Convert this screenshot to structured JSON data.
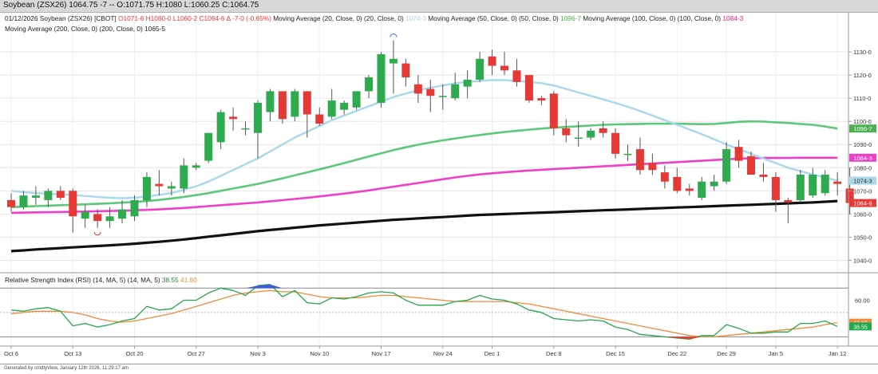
{
  "window_title": "Soybean (ZSX26) 1064.75 -7 -- O:1071.75 H:1080 L:1060.25 C:1064.75",
  "header": {
    "line1": [
      {
        "text": "01/12/2026 Soybean (ZSX26) [CBOT] ",
        "color": "#222222"
      },
      {
        "text": "O1071-6 H1080-0 L1060-2 C1064-6 Δ -7-0 (-0.65%)",
        "color": "#e53935"
      },
      {
        "text": " Moving Average (20, Close, 0) (20, Close, 0) ",
        "color": "#222222"
      },
      {
        "text": "1074-3",
        "color": "#a8d8ea"
      },
      {
        "text": " Moving Average (50, Close, 0) (50, Close, 0) ",
        "color": "#222222"
      },
      {
        "text": "1096-7",
        "color": "#4caf50"
      },
      {
        "text": " Moving Average (100, Close, 0) (100, Close, 0) ",
        "color": "#222222"
      },
      {
        "text": "1084-3",
        "color": "#e91e8c"
      }
    ],
    "line2": [
      {
        "text": "Moving Average (200, Close, 0) (200, Close, 0) ",
        "color": "#222222"
      },
      {
        "text": "1065-5",
        "color": "#222222"
      }
    ]
  },
  "rsi_header": [
    {
      "text": "Relative Strength Index (RSI) (14, MA, 5) (14, MA, 5) ",
      "color": "#222222"
    },
    {
      "text": "38.55",
      "color": "#2e7d32"
    },
    {
      "text": " 41.60",
      "color": "#ef8a3c"
    }
  ],
  "footer": "Generated by cmdtyView, January 12th 2026, 11:29:17 am",
  "colors": {
    "up": "#2eaa4f",
    "down": "#e53935",
    "ma20": "#a8d8ea",
    "ma50": "#5cc879",
    "ma100": "#ee3fc8",
    "ma200": "#111111",
    "rsi": "#22a84a",
    "rsi_ma": "#ef8a3c"
  },
  "chart_data": {
    "type": "candlestick",
    "price_axis": {
      "ticks": [
        "1130-0",
        "1120-0",
        "1110-0",
        "1100-0",
        "1090-0",
        "1080-0",
        "1070-0",
        "1060-0",
        "1050-0",
        "1040-0"
      ],
      "range": [
        1035,
        1140
      ]
    },
    "date_labels": [
      {
        "index": 0,
        "label": "Oct 6"
      },
      {
        "index": 5,
        "label": "Oct 13"
      },
      {
        "index": 10,
        "label": "Oct 20"
      },
      {
        "index": 15,
        "label": "Oct 27"
      },
      {
        "index": 20,
        "label": "Nov 3"
      },
      {
        "index": 25,
        "label": "Nov 10"
      },
      {
        "index": 30,
        "label": "Nov 17"
      },
      {
        "index": 35,
        "label": "Nov 24"
      },
      {
        "index": 39,
        "label": "Dec 1"
      },
      {
        "index": 44,
        "label": "Dec 8"
      },
      {
        "index": 49,
        "label": "Dec 15"
      },
      {
        "index": 54,
        "label": "Dec 22"
      },
      {
        "index": 58,
        "label": "Dec 29"
      },
      {
        "index": 62,
        "label": "Jan 5"
      },
      {
        "index": 67,
        "label": "Jan 12"
      }
    ],
    "ohlc": [
      [
        1066,
        1069,
        1061,
        1063
      ],
      [
        1063,
        1070,
        1062,
        1068
      ],
      [
        1067,
        1072,
        1064,
        1068
      ],
      [
        1066,
        1071,
        1063,
        1070
      ],
      [
        1070,
        1072,
        1066,
        1067
      ],
      [
        1070,
        1071,
        1052,
        1059
      ],
      [
        1058,
        1064,
        1054,
        1061
      ],
      [
        1060,
        1062,
        1054,
        1057
      ],
      [
        1057,
        1063,
        1054,
        1059
      ],
      [
        1058,
        1066,
        1056,
        1062
      ],
      [
        1059,
        1068,
        1057,
        1066
      ],
      [
        1066,
        1078,
        1063,
        1076
      ],
      [
        1073,
        1079,
        1068,
        1072
      ],
      [
        1071,
        1074,
        1068,
        1072
      ],
      [
        1071,
        1084,
        1069,
        1081
      ],
      [
        1080,
        1082,
        1079,
        1081
      ],
      [
        1083,
        1095,
        1082,
        1095
      ],
      [
        1091,
        1105,
        1088,
        1104
      ],
      [
        1102,
        1106,
        1096,
        1101
      ],
      [
        1097,
        1100,
        1094,
        1097
      ],
      [
        1095,
        1109,
        1084,
        1108
      ],
      [
        1104,
        1114,
        1100,
        1113
      ],
      [
        1113,
        1113,
        1099,
        1101
      ],
      [
        1102,
        1114,
        1100,
        1113
      ],
      [
        1113,
        1113,
        1093,
        1103
      ],
      [
        1103,
        1106,
        1098,
        1099
      ],
      [
        1102,
        1114,
        1101,
        1109
      ],
      [
        1105,
        1109,
        1103,
        1108
      ],
      [
        1106,
        1113,
        1105,
        1113
      ],
      [
        1113,
        1120,
        1110,
        1119
      ],
      [
        1108,
        1130,
        1106,
        1129
      ],
      [
        1125,
        1135,
        1112,
        1127
      ],
      [
        1125,
        1127,
        1115,
        1119
      ],
      [
        1116,
        1120,
        1108,
        1112
      ],
      [
        1114,
        1118,
        1104,
        1111
      ],
      [
        1111,
        1116,
        1105,
        1111
      ],
      [
        1110,
        1121,
        1109,
        1116
      ],
      [
        1115,
        1122,
        1110,
        1118
      ],
      [
        1118,
        1130,
        1117,
        1127
      ],
      [
        1128,
        1131,
        1120,
        1124
      ],
      [
        1124,
        1130,
        1120,
        1122
      ],
      [
        1122,
        1127,
        1115,
        1117
      ],
      [
        1120,
        1120,
        1108,
        1109
      ],
      [
        1110,
        1111,
        1107,
        1109
      ],
      [
        1112,
        1113,
        1094,
        1097
      ],
      [
        1097,
        1101,
        1091,
        1094
      ],
      [
        1093,
        1100,
        1089,
        1093
      ],
      [
        1093,
        1097,
        1092,
        1096
      ],
      [
        1097,
        1100,
        1093,
        1095
      ],
      [
        1095,
        1097,
        1084,
        1086
      ],
      [
        1086,
        1090,
        1083,
        1086
      ],
      [
        1088,
        1093,
        1077,
        1079
      ],
      [
        1082,
        1086,
        1077,
        1079
      ],
      [
        1078,
        1081,
        1071,
        1074
      ],
      [
        1076,
        1080,
        1069,
        1070
      ],
      [
        1071,
        1073,
        1068,
        1070
      ],
      [
        1067,
        1076,
        1066,
        1074
      ],
      [
        1072,
        1077,
        1070,
        1074
      ],
      [
        1074,
        1091,
        1073,
        1088
      ],
      [
        1089,
        1092,
        1080,
        1083
      ],
      [
        1085,
        1087,
        1077,
        1077
      ],
      [
        1077,
        1082,
        1074,
        1076
      ],
      [
        1076,
        1078,
        1061,
        1066
      ],
      [
        1066,
        1067,
        1056,
        1065
      ],
      [
        1066,
        1079,
        1065,
        1077
      ],
      [
        1068,
        1080,
        1067,
        1077
      ],
      [
        1069,
        1079,
        1068,
        1077
      ],
      [
        1074,
        1078,
        1068,
        1073
      ],
      [
        1071,
        1080,
        1060,
        1064.75
      ]
    ],
    "ma20": [
      1070,
      1069.5,
      1069,
      1068.8,
      1068.5,
      1068.2,
      1067.8,
      1067.4,
      1067,
      1066.8,
      1067,
      1067.6,
      1068.3,
      1069,
      1070.5,
      1072,
      1074,
      1076.5,
      1079,
      1081.5,
      1084,
      1087,
      1090,
      1093,
      1095.5,
      1098,
      1100.5,
      1102.5,
      1104.5,
      1106.5,
      1108.5,
      1110.5,
      1112,
      1113.5,
      1114.5,
      1115.5,
      1116.5,
      1117,
      1117.5,
      1117.8,
      1117.8,
      1117.5,
      1117,
      1116.5,
      1115.5,
      1114,
      1112.5,
      1111,
      1109.5,
      1108,
      1106.3,
      1104.5,
      1102.5,
      1100.5,
      1098.5,
      1096.5,
      1094.5,
      1092.3,
      1090,
      1088,
      1086,
      1084,
      1082,
      1080,
      1078.5,
      1077,
      1075.8,
      1074.4
    ],
    "ma50": [
      1063,
      1063.2,
      1063.4,
      1063.6,
      1063.8,
      1064,
      1064.2,
      1064.4,
      1064.6,
      1064.9,
      1065.2,
      1065.6,
      1066.1,
      1066.7,
      1067.4,
      1068.2,
      1069,
      1070,
      1071,
      1072,
      1073,
      1074.2,
      1075.4,
      1076.7,
      1078,
      1079.3,
      1080.6,
      1082,
      1083.4,
      1084.8,
      1086.2,
      1087.6,
      1088.8,
      1089.9,
      1090.9,
      1091.8,
      1092.6,
      1093.4,
      1094.1,
      1094.8,
      1095.4,
      1095.9,
      1096.4,
      1096.9,
      1097.3,
      1097.6,
      1097.9,
      1098.2,
      1098.5,
      1098.7,
      1098.8,
      1098.9,
      1099,
      1099,
      1099,
      1098.9,
      1098.8,
      1098.9,
      1099.3,
      1099.8,
      1100,
      1099.9,
      1099.6,
      1099.3,
      1098.9,
      1098.5,
      1097.8,
      1096.9
    ],
    "ma100": [
      1060.5,
      1060.6,
      1060.7,
      1060.8,
      1060.9,
      1061,
      1061.1,
      1061.2,
      1061.3,
      1061.4,
      1061.6,
      1061.8,
      1062,
      1062.3,
      1062.6,
      1063,
      1063.4,
      1063.8,
      1064.2,
      1064.6,
      1065,
      1065.5,
      1066,
      1066.5,
      1067,
      1067.6,
      1068.2,
      1068.8,
      1069.5,
      1070.2,
      1071,
      1071.8,
      1072.6,
      1073.4,
      1074.2,
      1075,
      1075.8,
      1076.5,
      1077.1,
      1077.6,
      1078,
      1078.4,
      1078.8,
      1079.1,
      1079.4,
      1079.7,
      1080,
      1080.3,
      1080.6,
      1080.9,
      1081.2,
      1081.5,
      1081.8,
      1082.1,
      1082.4,
      1082.7,
      1083,
      1083.3,
      1083.6,
      1083.9,
      1084.1,
      1084.2,
      1084.2,
      1084.2,
      1084.3,
      1084.3,
      1084.3,
      1084.3
    ],
    "ma200": [
      1044,
      1044.3,
      1044.7,
      1045,
      1045.3,
      1045.6,
      1045.9,
      1046.2,
      1046.5,
      1046.8,
      1047.2,
      1047.6,
      1048,
      1048.5,
      1049,
      1049.6,
      1050.2,
      1050.8,
      1051.4,
      1052,
      1052.6,
      1053.1,
      1053.6,
      1054.1,
      1054.6,
      1055.1,
      1055.5,
      1055.9,
      1056.3,
      1056.7,
      1057.1,
      1057.5,
      1057.8,
      1058.1,
      1058.4,
      1058.7,
      1059,
      1059.3,
      1059.6,
      1059.8,
      1060,
      1060.2,
      1060.4,
      1060.6,
      1060.8,
      1061,
      1061.2,
      1061.4,
      1061.6,
      1061.8,
      1062,
      1062.2,
      1062.4,
      1062.6,
      1062.8,
      1063,
      1063.2,
      1063.4,
      1063.6,
      1063.8,
      1064,
      1064.2,
      1064.4,
      1064.6,
      1064.8,
      1065,
      1065.3,
      1065.6
    ],
    "ma_labels": [
      {
        "text": "1096-7",
        "value": 1096.9,
        "color": "#4caf50"
      },
      {
        "text": "1084-3",
        "value": 1084.3,
        "color": "#ee3fc8"
      },
      {
        "text": "1074-3",
        "value": 1074.4,
        "color": "#a8d8ea"
      },
      {
        "text": "1064-6",
        "value": 1064.75,
        "color": "#e53935"
      }
    ],
    "rsi": {
      "axis_ticks": [
        "60.00"
      ],
      "range": [
        25,
        80
      ],
      "overbought": 70,
      "oversold": 30,
      "midline": 50,
      "values": [
        52,
        51,
        53,
        54,
        51,
        39,
        41,
        38,
        40,
        43,
        45,
        55,
        52,
        53,
        60,
        60,
        66,
        70,
        68,
        64,
        72,
        73,
        63,
        68,
        58,
        57,
        62,
        61,
        63,
        66,
        67,
        66,
        60,
        56,
        56,
        56,
        59,
        60,
        64,
        61,
        60,
        57,
        52,
        50,
        45,
        44,
        43,
        44,
        43,
        38,
        36,
        32,
        31,
        30,
        29,
        28,
        31,
        31,
        40,
        37,
        33,
        33,
        34,
        34,
        41,
        41,
        43,
        38.55
      ],
      "ma_values": [
        49,
        50,
        51,
        51,
        51,
        50,
        48,
        45,
        43,
        42,
        43,
        45,
        47,
        49,
        52,
        55,
        58,
        61,
        64,
        66,
        67,
        68,
        67,
        67,
        65,
        63,
        62,
        62,
        62,
        63,
        64,
        64,
        63,
        62,
        61,
        60,
        59,
        59,
        59,
        59,
        59,
        58,
        57,
        55,
        53,
        51,
        49,
        47,
        45,
        43,
        41,
        39,
        37,
        35,
        33,
        31,
        30,
        30,
        31,
        32,
        33,
        34,
        35,
        36,
        37,
        38,
        40,
        41.6
      ],
      "labels": [
        {
          "text": "41.60",
          "value": 41.6,
          "color": "#ef8a3c"
        },
        {
          "text": "38.55",
          "value": 38.55,
          "color": "#22a84a"
        }
      ]
    }
  }
}
